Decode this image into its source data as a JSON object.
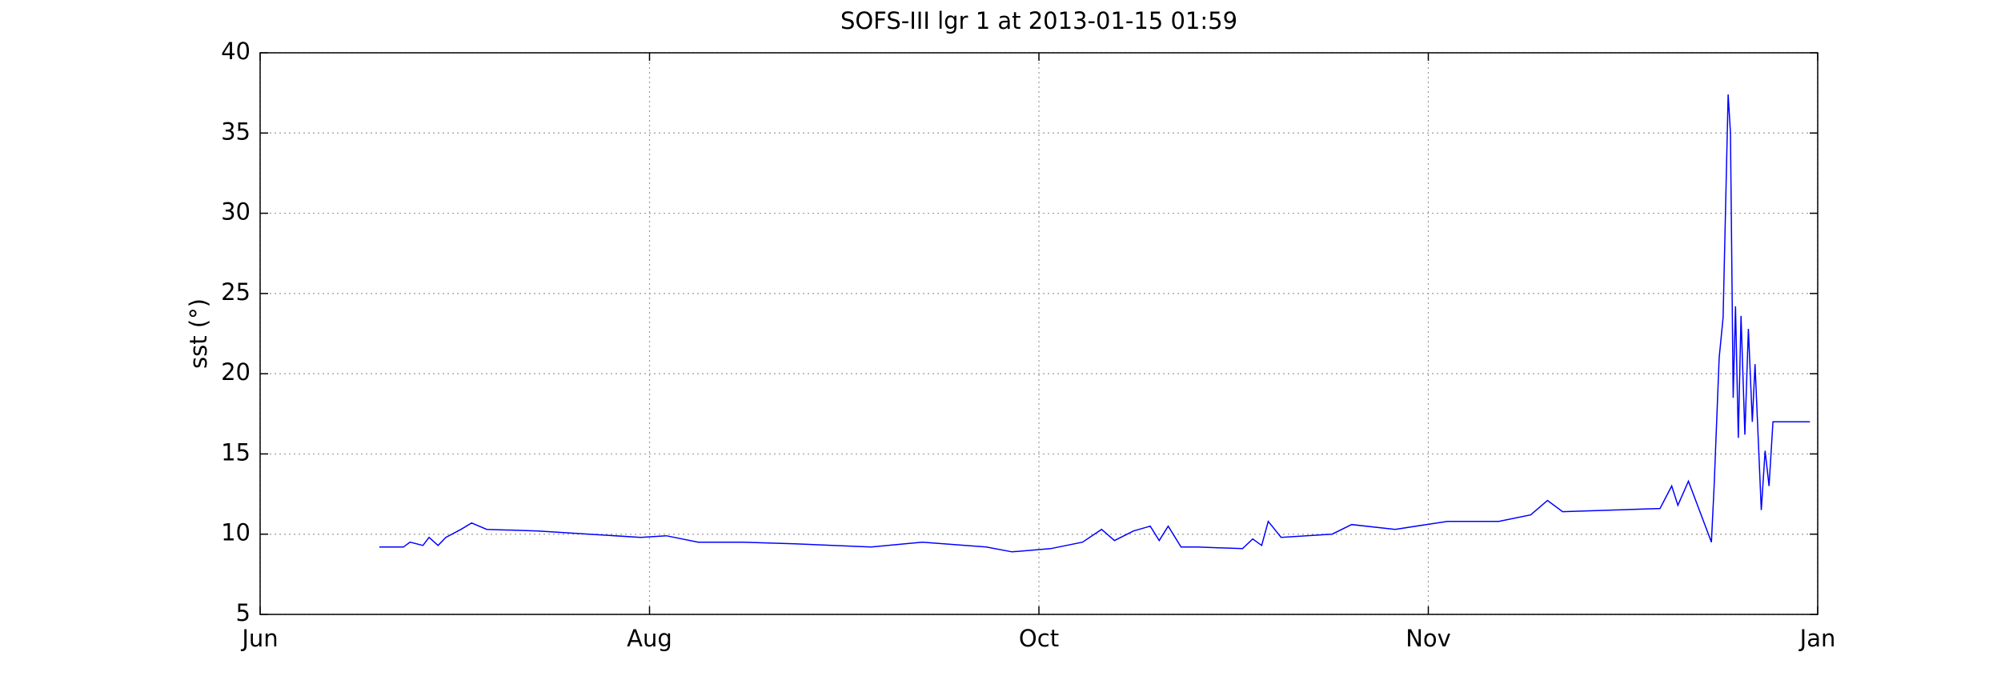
{
  "chart_data": {
    "type": "line",
    "title": "SOFS-III lgr 1 at 2013-01-15 01:59",
    "y_label": "sst (°)",
    "xlim": [
      0,
      4
    ],
    "xticks": [
      {
        "value": 0,
        "label": "Jun"
      },
      {
        "value": 1,
        "label": "Aug"
      },
      {
        "value": 2,
        "label": "Oct"
      },
      {
        "value": 3,
        "label": "Nov"
      },
      {
        "value": 4,
        "label": "Jan"
      }
    ],
    "ylim": [
      5,
      40
    ],
    "yticks": [
      5,
      10,
      15,
      20,
      25,
      30,
      35,
      40
    ],
    "grid": true,
    "series": [
      {
        "color": "#0000ff",
        "x": [
          0.306,
          0.368,
          0.385,
          0.418,
          0.434,
          0.457,
          0.477,
          0.516,
          0.543,
          0.582,
          0.714,
          0.845,
          0.977,
          1.043,
          1.125,
          1.24,
          1.372,
          1.569,
          1.701,
          1.865,
          1.931,
          2.03,
          2.112,
          2.161,
          2.194,
          2.243,
          2.286,
          2.309,
          2.332,
          2.365,
          2.408,
          2.523,
          2.549,
          2.572,
          2.589,
          2.622,
          2.753,
          2.803,
          2.915,
          3.049,
          3.181,
          3.263,
          3.306,
          3.345,
          3.595,
          3.625,
          3.641,
          3.668,
          3.727,
          3.734,
          3.747,
          3.757,
          3.77,
          3.776,
          3.783,
          3.789,
          3.796,
          3.803,
          3.813,
          3.822,
          3.832,
          3.839,
          3.855,
          3.865,
          3.875,
          3.885,
          3.98
        ],
        "values": [
          9.2,
          9.2,
          9.5,
          9.3,
          9.8,
          9.3,
          9.8,
          10.3,
          10.7,
          10.3,
          10.2,
          10.0,
          9.8,
          9.9,
          9.5,
          9.5,
          9.4,
          9.2,
          9.5,
          9.2,
          8.9,
          9.1,
          9.5,
          10.3,
          9.6,
          10.2,
          10.5,
          9.6,
          10.5,
          9.2,
          9.2,
          9.1,
          9.7,
          9.3,
          10.8,
          9.8,
          10.0,
          10.6,
          10.3,
          10.8,
          10.8,
          11.2,
          12.1,
          11.4,
          11.6,
          13.0,
          11.8,
          13.3,
          9.5,
          13.0,
          21,
          23.5,
          37.4,
          35,
          18.5,
          24.2,
          16,
          23.6,
          16.2,
          22.8,
          17,
          20.6,
          11.5,
          15.2,
          13,
          17,
          17
        ]
      }
    ]
  }
}
